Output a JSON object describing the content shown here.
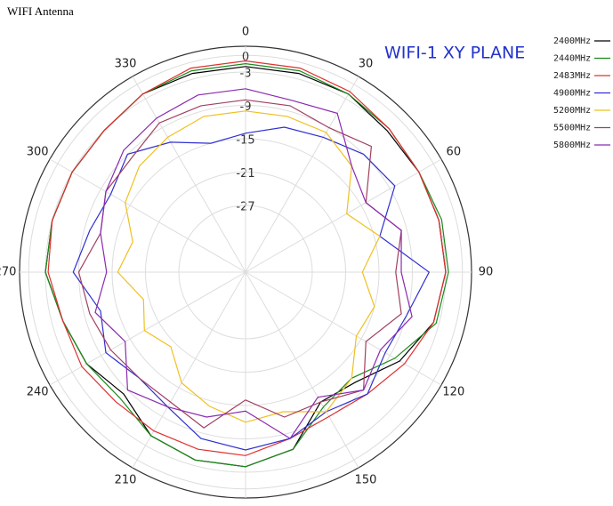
{
  "page_title": "WIFI Antenna",
  "chart_data": {
    "type": "polar",
    "title": "WIFI-1 XY PLANE",
    "theta": [
      0,
      15,
      30,
      45,
      60,
      75,
      90,
      105,
      120,
      135,
      150,
      165,
      180,
      195,
      210,
      225,
      240,
      255,
      270,
      285,
      300,
      315,
      330,
      345
    ],
    "thetaticks": [
      0,
      30,
      60,
      90,
      120,
      150,
      180,
      210,
      240,
      270,
      300,
      330
    ],
    "rlim": [
      -39,
      1
    ],
    "rticks": [
      0,
      -3,
      -9,
      -15,
      -21,
      -27
    ],
    "grid": true,
    "legend": "upper right",
    "series": [
      {
        "name": "2400MHz",
        "color": "#000000",
        "values": [
          -2,
          -2,
          -2,
          -3,
          -3,
          -3,
          -3,
          -4,
          -7,
          -11,
          -12,
          -6,
          -4,
          -4,
          -5,
          -8,
          -6,
          -5,
          -3,
          -3,
          -3,
          -3,
          -2,
          -2
        ]
      },
      {
        "name": "2440MHz",
        "color": "#1a8a1a",
        "values": [
          -1.5,
          -1.5,
          -2,
          -2.5,
          -3,
          -2.5,
          -2.5,
          -3.5,
          -8,
          -12,
          -11,
          -6,
          -4,
          -4,
          -5,
          -7,
          -6,
          -5,
          -3,
          -3,
          -3,
          -3,
          -2,
          -1.5
        ]
      },
      {
        "name": "2483MHz",
        "color": "#e03030",
        "values": [
          -1,
          -1,
          -1.5,
          -2.5,
          -3,
          -3,
          -3,
          -4,
          -6,
          -8,
          -9,
          -8,
          -6,
          -6,
          -6,
          -6,
          -5,
          -5,
          -3.5,
          -3,
          -3,
          -3,
          -2,
          -1
        ]
      },
      {
        "name": "4900MHz",
        "color": "#3030d0",
        "values": [
          -14,
          -12,
          -11,
          -9,
          -8,
          -14,
          -6,
          -9,
          -10,
          -8,
          -10,
          -8,
          -7,
          -8,
          -11,
          -12,
          -10,
          -12,
          -8,
          -10,
          -11,
          -9,
          -12,
          -15
        ]
      },
      {
        "name": "5200MHz",
        "color": "#f0c020",
        "values": [
          -10,
          -10,
          -10,
          -12,
          -18,
          -14,
          -18,
          -15,
          -16,
          -12,
          -10,
          -13,
          -12,
          -14,
          -16,
          -20,
          -18,
          -20,
          -16,
          -18,
          -14,
          -12,
          -11,
          -10
        ]
      },
      {
        "name": "5500MHz",
        "color": "#a04060",
        "values": [
          -8,
          -8,
          -9,
          -7,
          -14,
          -10,
          -12,
          -10,
          -14,
          -9,
          -12,
          -12,
          -16,
          -10,
          -12,
          -12,
          -11,
          -10,
          -9,
          -12,
          -10,
          -10,
          -8,
          -8
        ]
      },
      {
        "name": "5800MHz",
        "color": "#8a2ab0",
        "values": [
          -6,
          -7,
          -6,
          -12,
          -14,
          -10,
          -11,
          -8,
          -11,
          -9,
          -13,
          -8,
          -14,
          -12,
          -11,
          -9,
          -14,
          -11,
          -14,
          -12,
          -10,
          -8,
          -7,
          -6
        ]
      }
    ]
  }
}
